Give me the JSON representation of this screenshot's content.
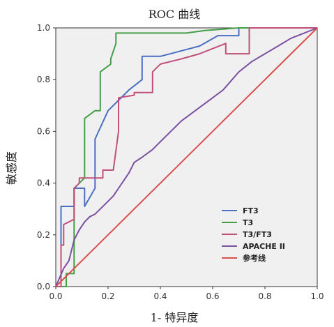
{
  "chart_data": {
    "type": "line",
    "title": "ROC 曲线",
    "xlabel": "1- 特异度",
    "ylabel": "敏感度",
    "xlim": [
      0,
      1
    ],
    "ylim": [
      0,
      1
    ],
    "xticks": [
      "0.0",
      "0.2",
      "0.4",
      "0.6",
      "0.8",
      "1.0"
    ],
    "yticks": [
      "0.0",
      "0.2",
      "0.4",
      "0.6",
      "0.8",
      "1.0"
    ],
    "grid": false,
    "background": "#f0f0f0",
    "legend_position": "bottom-right",
    "series": [
      {
        "name": "FT3",
        "color": "#4a6fc0",
        "x": [
          0,
          0.02,
          0.02,
          0.07,
          0.07,
          0.11,
          0.11,
          0.15,
          0.15,
          0.2,
          0.28,
          0.33,
          0.33,
          0.4,
          0.55,
          0.62,
          0.7,
          0.7,
          1.0
        ],
        "y": [
          0,
          0,
          0.31,
          0.31,
          0.38,
          0.38,
          0.31,
          0.38,
          0.57,
          0.68,
          0.76,
          0.8,
          0.89,
          0.89,
          0.93,
          0.97,
          0.97,
          1.0,
          1.0
        ]
      },
      {
        "name": "T3",
        "color": "#43a047",
        "x": [
          0,
          0.04,
          0.04,
          0.07,
          0.07,
          0.09,
          0.11,
          0.11,
          0.15,
          0.17,
          0.17,
          0.21,
          0.21,
          0.23,
          0.23,
          0.5,
          0.57,
          0.7,
          1.0
        ],
        "y": [
          0,
          0,
          0.05,
          0.05,
          0.38,
          0.4,
          0.42,
          0.65,
          0.68,
          0.68,
          0.83,
          0.86,
          0.88,
          0.94,
          0.98,
          0.98,
          0.99,
          1.0,
          1.0
        ]
      },
      {
        "name": "T3/FT3",
        "color": "#c0507a",
        "x": [
          0,
          0.02,
          0.02,
          0.03,
          0.03,
          0.05,
          0.07,
          0.07,
          0.09,
          0.09,
          0.18,
          0.18,
          0.22,
          0.24,
          0.24,
          0.3,
          0.3,
          0.37,
          0.37,
          0.4,
          0.48,
          0.55,
          0.6,
          0.65,
          0.65,
          0.74,
          0.74,
          1.0
        ],
        "y": [
          0,
          0,
          0.16,
          0.16,
          0.24,
          0.25,
          0.26,
          0.38,
          0.4,
          0.42,
          0.42,
          0.45,
          0.45,
          0.6,
          0.73,
          0.74,
          0.75,
          0.75,
          0.83,
          0.86,
          0.88,
          0.9,
          0.92,
          0.94,
          0.9,
          0.9,
          1.0,
          1.0
        ]
      },
      {
        "name": "APACHE II",
        "color": "#7b4fa0",
        "x": [
          0,
          0.03,
          0.05,
          0.07,
          0.09,
          0.11,
          0.13,
          0.15,
          0.17,
          0.19,
          0.22,
          0.24,
          0.26,
          0.28,
          0.3,
          0.33,
          0.37,
          0.4,
          0.44,
          0.48,
          0.52,
          0.56,
          0.6,
          0.64,
          0.7,
          0.75,
          0.8,
          0.85,
          0.9,
          0.95,
          1.0
        ],
        "y": [
          0,
          0.07,
          0.1,
          0.18,
          0.22,
          0.25,
          0.27,
          0.28,
          0.3,
          0.32,
          0.35,
          0.38,
          0.41,
          0.44,
          0.48,
          0.5,
          0.53,
          0.56,
          0.6,
          0.64,
          0.67,
          0.7,
          0.73,
          0.76,
          0.83,
          0.87,
          0.9,
          0.93,
          0.96,
          0.98,
          1.0
        ]
      },
      {
        "name": "参考线",
        "color": "#d94f4f",
        "x": [
          0,
          1
        ],
        "y": [
          0,
          1
        ]
      }
    ]
  }
}
